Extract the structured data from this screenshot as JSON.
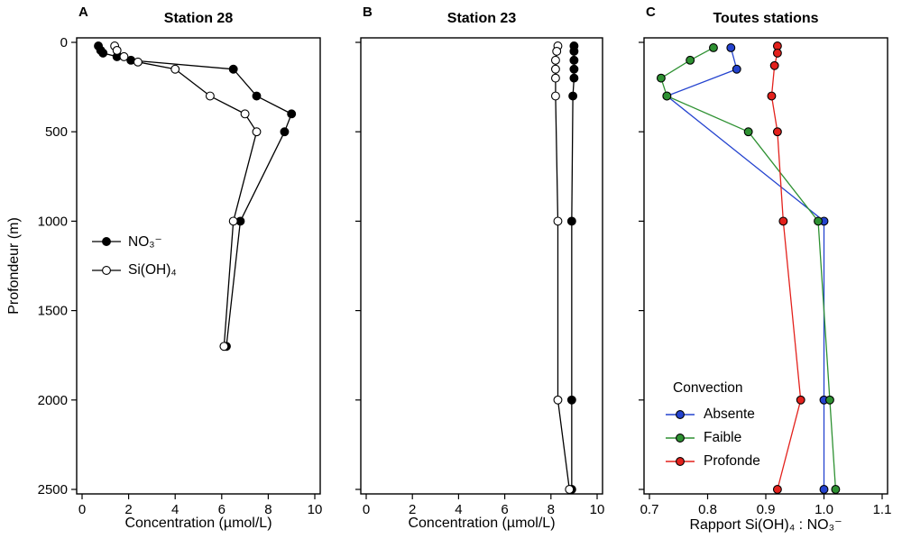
{
  "figure": {
    "y_axis_title": "Profondeur (m)",
    "background": "#ffffff",
    "axis_color": "#000000"
  },
  "chart_data": [
    {
      "type": "line",
      "letter": "A",
      "title": "Station 28",
      "xlabel": "Concentration (µmol/L)",
      "xlim": [
        0,
        10
      ],
      "xticks": [
        0,
        2,
        4,
        6,
        8,
        10
      ],
      "xtick_labels": [
        "0",
        "2",
        "4",
        "6",
        "8",
        "10"
      ],
      "ylim": [
        0,
        2500
      ],
      "yticks": [
        0,
        500,
        1000,
        1500,
        2000,
        2500
      ],
      "ytick_labels": [
        "0",
        "500",
        "1000",
        "1500",
        "2000",
        "2500"
      ],
      "y_inverted": true,
      "show_y_tick_labels": true,
      "series": [
        {
          "id": "no3",
          "name": "NO₃⁻",
          "line_color": "#000000",
          "marker_fill": "#000000",
          "marker_stroke": "#000000",
          "depths": [
            20,
            45,
            60,
            80,
            100,
            150,
            300,
            400,
            500,
            1000,
            1700
          ],
          "values": [
            0.7,
            0.8,
            0.9,
            1.5,
            2.1,
            6.5,
            7.5,
            9.0,
            8.7,
            6.8,
            6.2
          ]
        },
        {
          "id": "sioh4",
          "name": "Si(OH)₄",
          "line_color": "#000000",
          "marker_fill": "#ffffff",
          "marker_stroke": "#000000",
          "depths": [
            20,
            45,
            80,
            110,
            150,
            300,
            400,
            500,
            1000,
            1700
          ],
          "values": [
            1.4,
            1.5,
            1.8,
            2.4,
            4.0,
            5.5,
            7.0,
            7.5,
            6.5,
            6.1
          ]
        }
      ]
    },
    {
      "type": "line",
      "letter": "B",
      "title": "Station 23",
      "xlabel": "Concentration (µmol/L)",
      "xlim": [
        0,
        10
      ],
      "xticks": [
        0,
        2,
        4,
        6,
        8,
        10
      ],
      "xtick_labels": [
        "0",
        "2",
        "4",
        "6",
        "8",
        "10"
      ],
      "ylim": [
        0,
        2500
      ],
      "yticks": [
        0,
        500,
        1000,
        1500,
        2000,
        2500
      ],
      "ytick_labels": [
        "0",
        "500",
        "1000",
        "1500",
        "2000",
        "2500"
      ],
      "y_inverted": true,
      "show_y_tick_labels": false,
      "series": [
        {
          "id": "no3",
          "name": "NO₃⁻",
          "line_color": "#000000",
          "marker_fill": "#000000",
          "marker_stroke": "#000000",
          "depths": [
            20,
            50,
            100,
            150,
            200,
            300,
            1000,
            2000,
            2500
          ],
          "values": [
            9.0,
            9.0,
            9.0,
            9.0,
            9.0,
            8.95,
            8.9,
            8.9,
            8.9
          ]
        },
        {
          "id": "sioh4",
          "name": "Si(OH)₄",
          "line_color": "#000000",
          "marker_fill": "#ffffff",
          "marker_stroke": "#000000",
          "depths": [
            20,
            50,
            100,
            150,
            200,
            300,
            1000,
            2000,
            2500
          ],
          "values": [
            8.3,
            8.25,
            8.2,
            8.2,
            8.2,
            8.2,
            8.3,
            8.3,
            8.8
          ]
        }
      ]
    },
    {
      "type": "line",
      "letter": "C",
      "title": "Toutes stations",
      "xlabel": "Rapport Si(OH)₄ : NO₃⁻",
      "legend_title": "Convection",
      "xlim": [
        0.7,
        1.1
      ],
      "xticks": [
        0.7,
        0.8,
        0.9,
        1.0,
        1.1
      ],
      "xtick_labels": [
        "0.7",
        "0.8",
        "0.9",
        "1.0",
        "1.1"
      ],
      "ylim": [
        0,
        2500
      ],
      "yticks": [
        0,
        500,
        1000,
        1500,
        2000,
        2500
      ],
      "ytick_labels": [
        "0",
        "500",
        "1000",
        "1500",
        "2000",
        "2500"
      ],
      "y_inverted": true,
      "show_y_tick_labels": false,
      "series": [
        {
          "id": "absente",
          "name": "Absente",
          "line_color": "#2443cf",
          "marker_fill": "#2443cf",
          "marker_stroke": "#000000",
          "depths": [
            30,
            150,
            300,
            1000,
            2000,
            2500
          ],
          "values": [
            0.84,
            0.85,
            0.73,
            1.0,
            1.0,
            1.0
          ]
        },
        {
          "id": "faible",
          "name": "Faible",
          "line_color": "#2e9132",
          "marker_fill": "#2e9132",
          "marker_stroke": "#000000",
          "depths": [
            30,
            100,
            200,
            300,
            500,
            1000,
            2000,
            2500
          ],
          "values": [
            0.81,
            0.77,
            0.72,
            0.73,
            0.87,
            0.99,
            1.01,
            1.02
          ]
        },
        {
          "id": "profonde",
          "name": "Profonde",
          "line_color": "#e3211c",
          "marker_fill": "#e3211c",
          "marker_stroke": "#000000",
          "depths": [
            20,
            60,
            130,
            300,
            500,
            1000,
            2000,
            2500
          ],
          "values": [
            0.92,
            0.92,
            0.915,
            0.91,
            0.92,
            0.93,
            0.96,
            0.92
          ]
        }
      ]
    }
  ]
}
